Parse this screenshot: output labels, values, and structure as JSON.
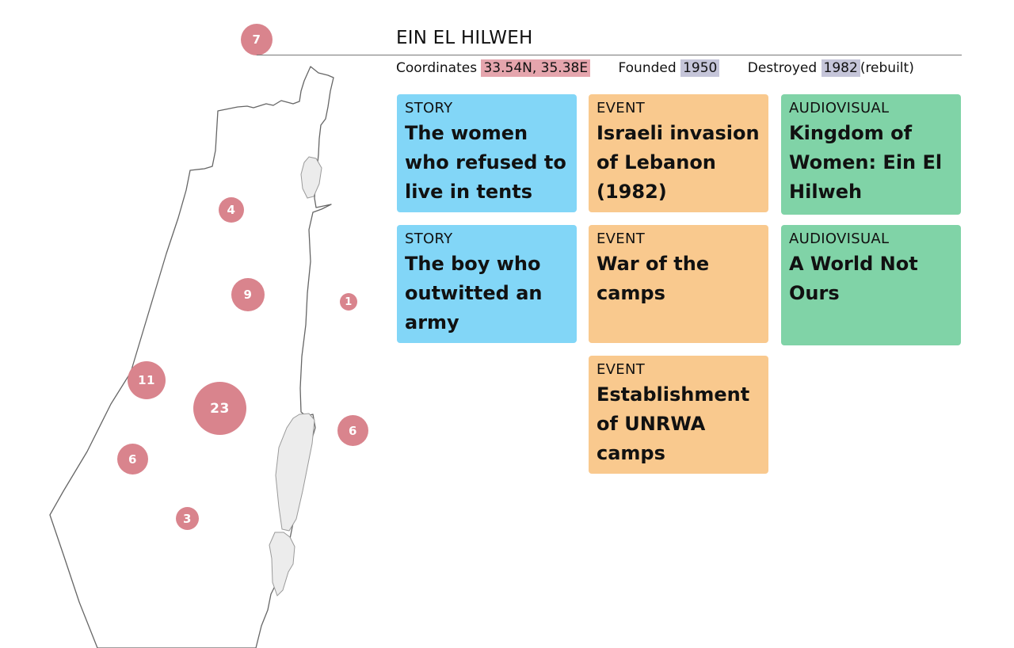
{
  "camp": {
    "name": "EIN EL HILWEH",
    "coordinates_label": "Coordinates",
    "coordinates": "33.54N, 35.38E",
    "founded_label": "Founded",
    "founded": "1950",
    "destroyed_label": "Destroyed",
    "destroyed": "1982",
    "destroyed_note": "(rebuilt)"
  },
  "map": {
    "marker_color": "#d9848d",
    "markers": [
      "7",
      "4",
      "9",
      "1",
      "11",
      "23",
      "6",
      "6",
      "3"
    ]
  },
  "cards": [
    {
      "type": "STORY",
      "title": "The women who refused to live in tents",
      "color": "#82d6f7"
    },
    {
      "type": "STORY",
      "title": "The boy who outwitted an army",
      "color": "#82d6f7"
    },
    {
      "type": "EVENT",
      "title": "Israeli invasion of Lebanon (1982)",
      "color": "#f9c98e"
    },
    {
      "type": "EVENT",
      "title": "War of the camps",
      "color": "#f9c98e"
    },
    {
      "type": "EVENT",
      "title": "Establishment of UNRWA camps",
      "color": "#f9c98e"
    },
    {
      "type": "AUDIOVISUAL",
      "title": "Kingdom of Women: Ein El Hilweh",
      "color": "#80d3a7"
    },
    {
      "type": "AUDIOVISUAL",
      "title": "A World Not Ours",
      "color": "#80d3a7"
    }
  ]
}
